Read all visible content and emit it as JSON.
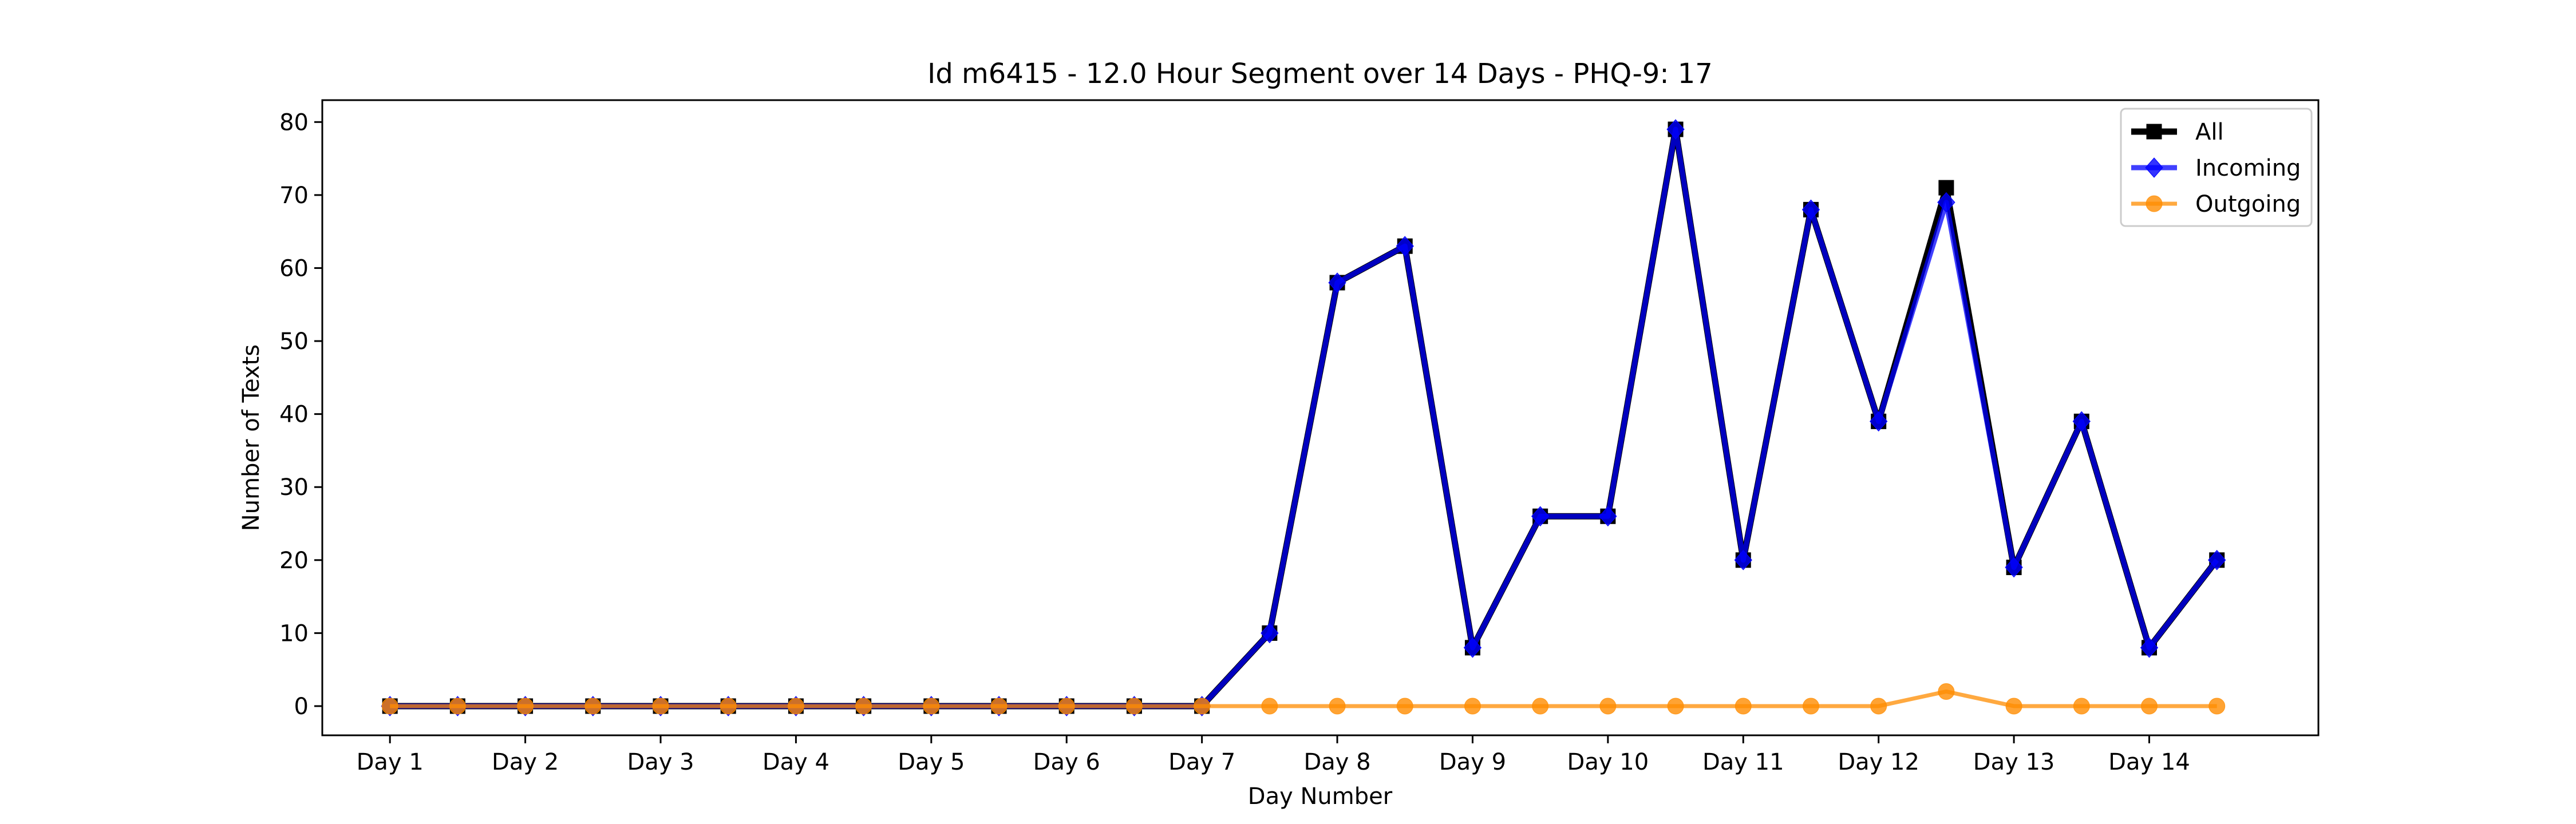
{
  "chart_data": {
    "type": "line",
    "title": "Id m6415 - 12.0 Hour Segment over 14 Days - PHQ-9: 17",
    "xlabel": "Day Number",
    "ylabel": "Number of Texts",
    "ylim": [
      -4,
      83
    ],
    "yticks": [
      0,
      10,
      20,
      30,
      40,
      50,
      60,
      70,
      80
    ],
    "xticks": [
      {
        "x": 1,
        "label": "Day 1"
      },
      {
        "x": 3,
        "label": "Day 2"
      },
      {
        "x": 5,
        "label": "Day 3"
      },
      {
        "x": 7,
        "label": "Day 4"
      },
      {
        "x": 9,
        "label": "Day 5"
      },
      {
        "x": 11,
        "label": "Day 6"
      },
      {
        "x": 13,
        "label": "Day 7"
      },
      {
        "x": 15,
        "label": "Day 8"
      },
      {
        "x": 17,
        "label": "Day 9"
      },
      {
        "x": 19,
        "label": "Day 10"
      },
      {
        "x": 21,
        "label": "Day 11"
      },
      {
        "x": 23,
        "label": "Day 12"
      },
      {
        "x": 25,
        "label": "Day 13"
      },
      {
        "x": 27,
        "label": "Day 14"
      }
    ],
    "x": [
      1,
      2,
      3,
      4,
      5,
      6,
      7,
      8,
      9,
      10,
      11,
      12,
      13,
      14,
      15,
      16,
      17,
      18,
      19,
      20,
      21,
      22,
      23,
      24,
      25,
      26,
      27,
      28
    ],
    "legend_position": "top-right",
    "series": [
      {
        "name": "All",
        "color": "#000000",
        "marker": "square",
        "values": [
          0,
          0,
          0,
          0,
          0,
          0,
          0,
          0,
          0,
          0,
          0,
          0,
          0,
          10,
          58,
          63,
          8,
          26,
          26,
          79,
          20,
          68,
          39,
          71,
          19,
          39,
          8,
          20
        ]
      },
      {
        "name": "Incoming",
        "color": "#0000ff",
        "marker": "diamond",
        "values": [
          0,
          0,
          0,
          0,
          0,
          0,
          0,
          0,
          0,
          0,
          0,
          0,
          0,
          10,
          58,
          63,
          8,
          26,
          26,
          79,
          20,
          68,
          39,
          69,
          19,
          39,
          8,
          20
        ]
      },
      {
        "name": "Outgoing",
        "color": "#ff8c00",
        "marker": "circle",
        "values": [
          0,
          0,
          0,
          0,
          0,
          0,
          0,
          0,
          0,
          0,
          0,
          0,
          0,
          0,
          0,
          0,
          0,
          0,
          0,
          0,
          0,
          0,
          0,
          2,
          0,
          0,
          0,
          0
        ]
      }
    ]
  }
}
